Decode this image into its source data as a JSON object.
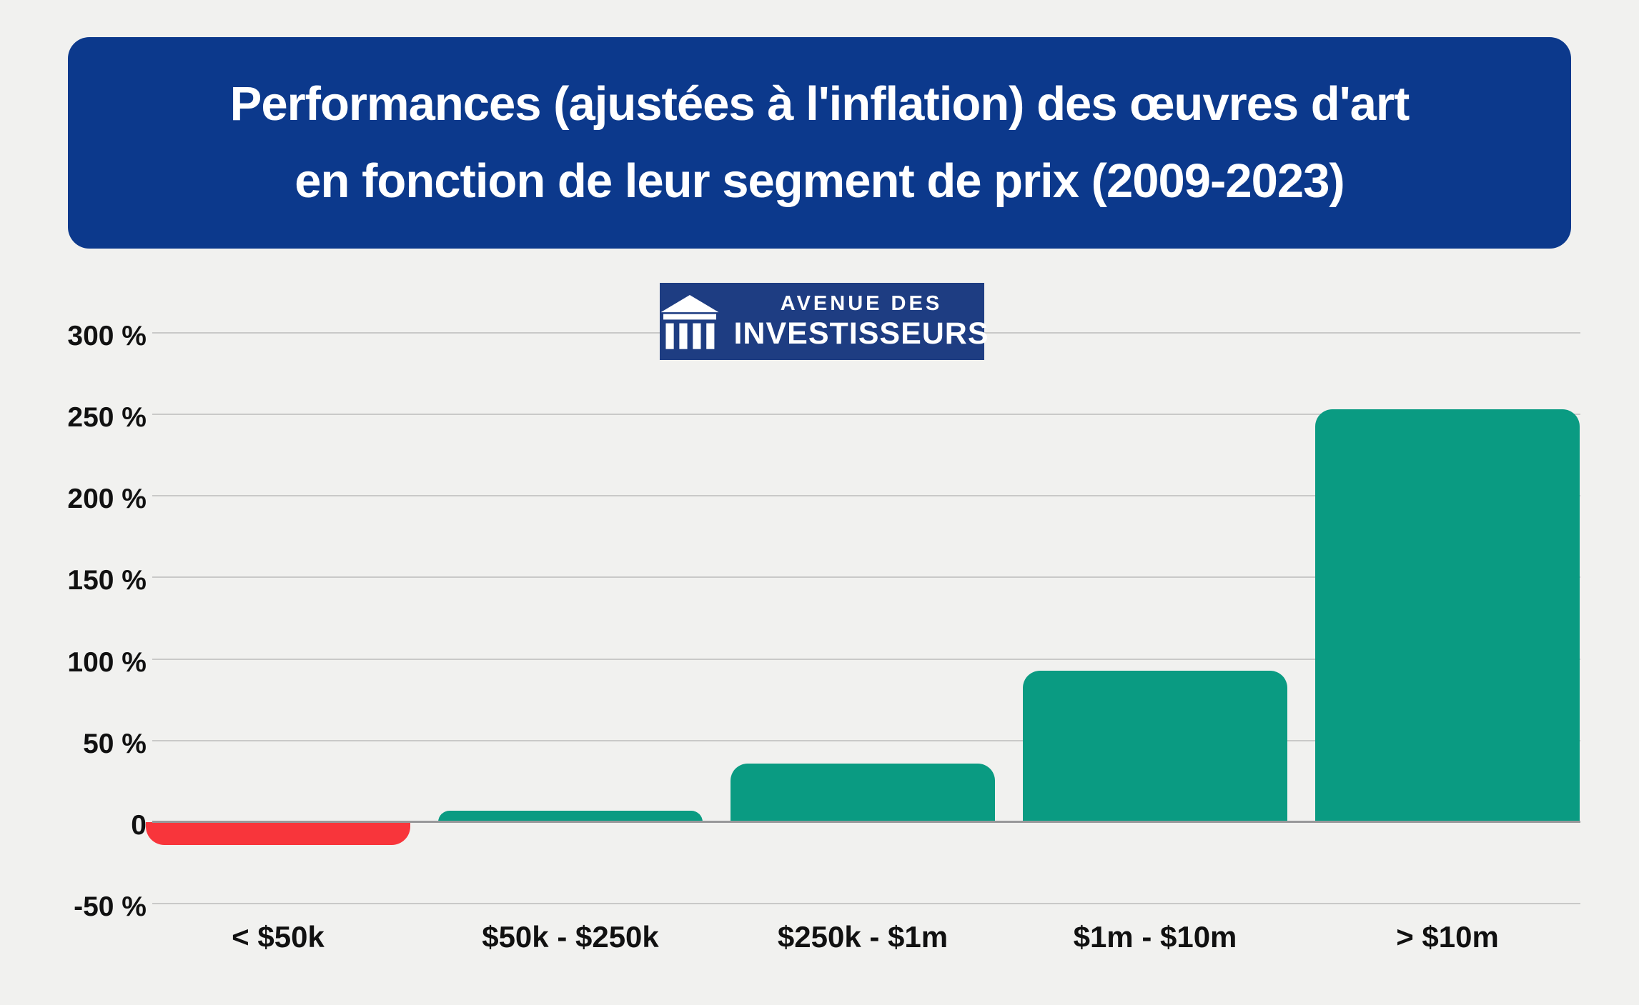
{
  "page": {
    "background": "#f1f1ef"
  },
  "banner": {
    "title_line1": "Performances (ajustées à l'inflation) des œuvres d'art",
    "title_line2": "en fonction de leur segment de prix (2009-2023)",
    "background": "#0c398c",
    "text_color": "#ffffff"
  },
  "logo": {
    "line1": "AVENUE DES",
    "line2": "INVESTISSEURS",
    "background": "#1e3d82",
    "icon": "temple-columns-icon"
  },
  "chart_data": {
    "type": "bar",
    "title": "Performances (ajustées à l'inflation) des œuvres d'art en fonction de leur segment de prix (2009-2023)",
    "categories": [
      "< $50k",
      "$50k - $250k",
      "$250k - $1m",
      "$1m - $10m",
      "> $10m"
    ],
    "values": [
      -14,
      7,
      36,
      93,
      253
    ],
    "unit": "%",
    "xlabel": "",
    "ylabel": "",
    "ylim": [
      -50,
      300
    ],
    "grid": true,
    "legend": false,
    "yticks": [
      {
        "v": 300,
        "label": "300 %"
      },
      {
        "v": 250,
        "label": "250 %"
      },
      {
        "v": 200,
        "label": "200 %"
      },
      {
        "v": 150,
        "label": "150 %"
      },
      {
        "v": 100,
        "label": "100 %"
      },
      {
        "v": 50,
        "label": "50 %"
      },
      {
        "v": 0,
        "label": "0"
      },
      {
        "v": -50,
        "label": "-50 %"
      }
    ],
    "positive_color": "#0a9b82",
    "negative_color": "#f8353b",
    "bar_colors": [
      "#f8353b",
      "#0a9b82",
      "#0a9b82",
      "#0a9b82",
      "#0a9b82"
    ],
    "gridline_color": "#c9c9c8",
    "zero_line_color": "#98989a"
  }
}
